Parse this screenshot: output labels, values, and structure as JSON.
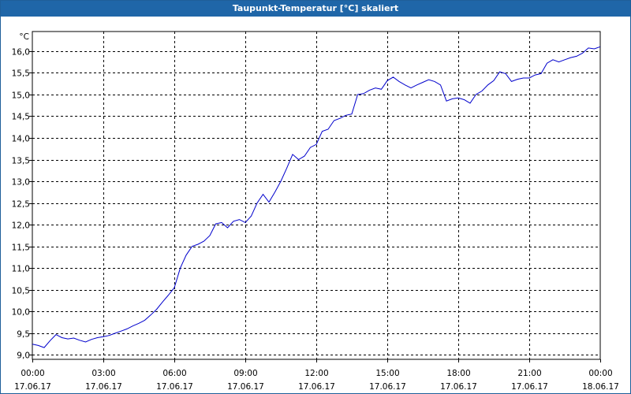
{
  "window": {
    "title": "Taupunkt-Temperatur [°C] skaliert"
  },
  "colors": {
    "titlebar": "#1f66a8",
    "line": "#0000cc",
    "grid": "#000000"
  },
  "chart_data": {
    "type": "line",
    "title": "Taupunkt-Temperatur [°C] skaliert",
    "ylabel": "°C",
    "ylim": [
      8.9,
      16.45
    ],
    "yticks": [
      9.0,
      9.5,
      10.0,
      10.5,
      11.0,
      11.5,
      12.0,
      12.5,
      13.0,
      13.5,
      14.0,
      14.5,
      15.0,
      15.5,
      16.0
    ],
    "ytick_labels": [
      "9,0",
      "9,5",
      "10,0",
      "10,5",
      "11,0",
      "11,5",
      "12,0",
      "12,5",
      "13,0",
      "13,5",
      "14,0",
      "14,5",
      "15,0",
      "15,5",
      "16,0"
    ],
    "xlim": [
      0,
      24
    ],
    "xticks": [
      0,
      3,
      6,
      9,
      12,
      15,
      18,
      21,
      24
    ],
    "xtick_labels": [
      {
        "time": "00:00",
        "date": "17.06.17"
      },
      {
        "time": "03:00",
        "date": "17.06.17"
      },
      {
        "time": "06:00",
        "date": "17.06.17"
      },
      {
        "time": "09:00",
        "date": "17.06.17"
      },
      {
        "time": "12:00",
        "date": "17.06.17"
      },
      {
        "time": "15:00",
        "date": "17.06.17"
      },
      {
        "time": "18:00",
        "date": "17.06.17"
      },
      {
        "time": "21:00",
        "date": "17.06.17"
      },
      {
        "time": "00:00",
        "date": "18.06.17"
      }
    ],
    "grid": true,
    "grid_style": "dashed",
    "series": [
      {
        "color": "#0000cc",
        "x": [
          0.0,
          0.25,
          0.5,
          0.75,
          1.0,
          1.25,
          1.5,
          1.75,
          2.0,
          2.25,
          2.5,
          2.75,
          3.0,
          3.25,
          3.5,
          3.75,
          4.0,
          4.25,
          4.5,
          4.75,
          5.0,
          5.25,
          5.5,
          5.75,
          6.0,
          6.25,
          6.5,
          6.75,
          7.0,
          7.25,
          7.5,
          7.75,
          8.0,
          8.25,
          8.5,
          8.75,
          9.0,
          9.25,
          9.5,
          9.75,
          10.0,
          10.25,
          10.5,
          10.75,
          11.0,
          11.25,
          11.5,
          11.75,
          12.0,
          12.25,
          12.5,
          12.75,
          13.0,
          13.25,
          13.5,
          13.75,
          14.0,
          14.25,
          14.5,
          14.75,
          15.0,
          15.25,
          15.5,
          15.75,
          16.0,
          16.25,
          16.5,
          16.75,
          17.0,
          17.25,
          17.5,
          17.75,
          18.0,
          18.25,
          18.5,
          18.75,
          19.0,
          19.25,
          19.5,
          19.75,
          20.0,
          20.25,
          20.5,
          20.75,
          21.0,
          21.25,
          21.5,
          21.75,
          22.0,
          22.25,
          22.5,
          22.75,
          23.0,
          23.25,
          23.5,
          23.75,
          24.0
        ],
        "y": [
          9.25,
          9.22,
          9.17,
          9.33,
          9.47,
          9.4,
          9.37,
          9.39,
          9.34,
          9.3,
          9.36,
          9.4,
          9.42,
          9.45,
          9.5,
          9.55,
          9.6,
          9.67,
          9.73,
          9.8,
          9.92,
          10.05,
          10.22,
          10.38,
          10.55,
          11.0,
          11.3,
          11.5,
          11.55,
          11.62,
          11.75,
          12.02,
          12.05,
          11.93,
          12.08,
          12.12,
          12.05,
          12.2,
          12.5,
          12.7,
          12.52,
          12.75,
          13.0,
          13.3,
          13.62,
          13.5,
          13.58,
          13.78,
          13.85,
          14.15,
          14.2,
          14.4,
          14.45,
          14.52,
          14.55,
          15.0,
          15.02,
          15.1,
          15.15,
          15.12,
          15.32,
          15.4,
          15.3,
          15.22,
          15.15,
          15.22,
          15.28,
          15.34,
          15.3,
          15.22,
          14.85,
          14.9,
          14.92,
          14.88,
          14.8,
          15.0,
          15.08,
          15.22,
          15.32,
          15.52,
          15.48,
          15.3,
          15.35,
          15.38,
          15.38,
          15.45,
          15.48,
          15.72,
          15.8,
          15.75,
          15.8,
          15.85,
          15.88,
          15.95,
          16.07,
          16.05,
          16.1
        ]
      }
    ]
  }
}
